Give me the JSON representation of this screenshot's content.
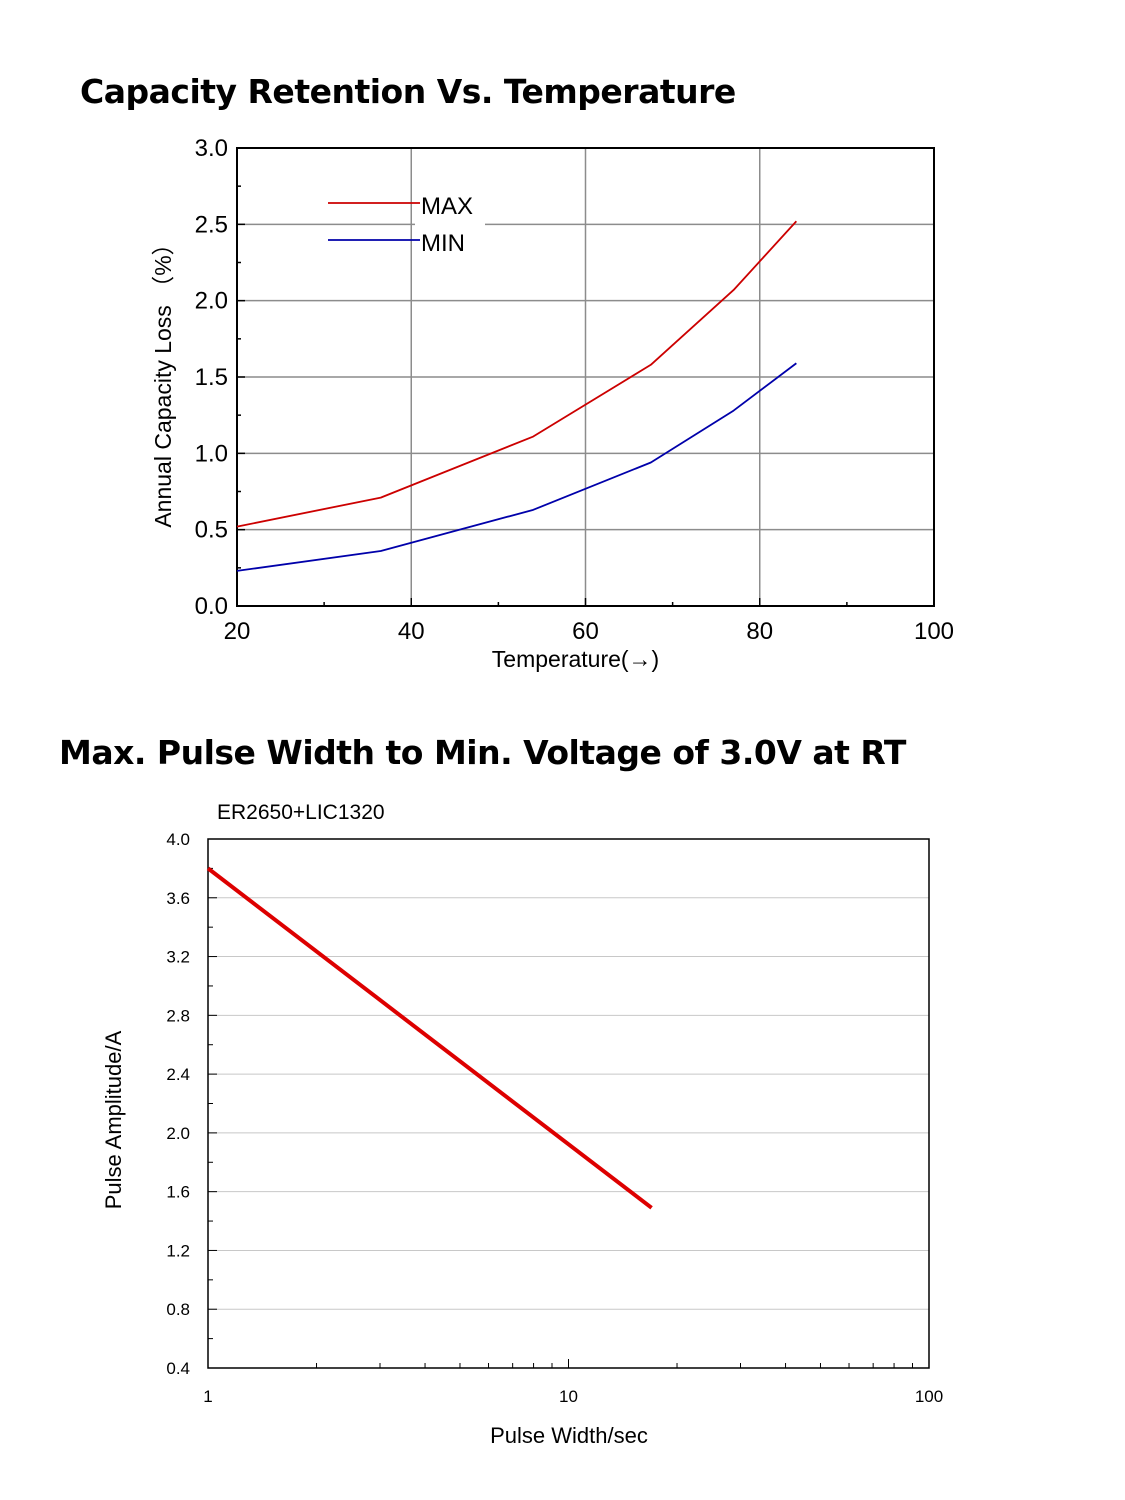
{
  "chart_data": [
    {
      "type": "line",
      "title": "Capacity Retention Vs. Temperature",
      "xlabel": "Temperature(→)",
      "ylabel": "Annual Capacity Loss （%）",
      "xlim": [
        20,
        100
      ],
      "ylim": [
        0.0,
        3.0
      ],
      "xticks": [
        "20",
        "40",
        "60",
        "80",
        "100"
      ],
      "yticks": [
        "0.0",
        "0.5",
        "1.0",
        "1.5",
        "2.0",
        "2.5",
        "3.0"
      ],
      "grid": true,
      "legend_position": "top-left",
      "series": [
        {
          "name": "MAX",
          "color": "#cc0000",
          "x": [
            20,
            36.5,
            54,
            67.5,
            77,
            84.2
          ],
          "y": [
            0.52,
            0.71,
            1.11,
            1.58,
            2.07,
            2.52
          ]
        },
        {
          "name": "MIN",
          "color": "#0000aa",
          "x": [
            20,
            36.5,
            54,
            67.5,
            77,
            84.2
          ],
          "y": [
            0.23,
            0.36,
            0.63,
            0.94,
            1.28,
            1.59
          ]
        }
      ]
    },
    {
      "type": "line",
      "title": "Max. Pulse Width to Min. Voltage of 3.0V at RT",
      "subtitle": "ER2650+LIC1320",
      "xlabel": "Pulse Width/sec",
      "ylabel": "Pulse Amplitude/A",
      "xscale": "log",
      "xlim": [
        1,
        100
      ],
      "ylim": [
        0.4,
        4.0
      ],
      "xticks": [
        "1",
        "10",
        "100"
      ],
      "yticks": [
        "0.4",
        "0.8",
        "1.2",
        "1.6",
        "2.0",
        "2.4",
        "2.8",
        "3.2",
        "3.6",
        "4.0"
      ],
      "grid": true,
      "series": [
        {
          "color": "#dd0000",
          "x": [
            1,
            17
          ],
          "y": [
            3.8,
            1.49
          ]
        }
      ]
    }
  ]
}
